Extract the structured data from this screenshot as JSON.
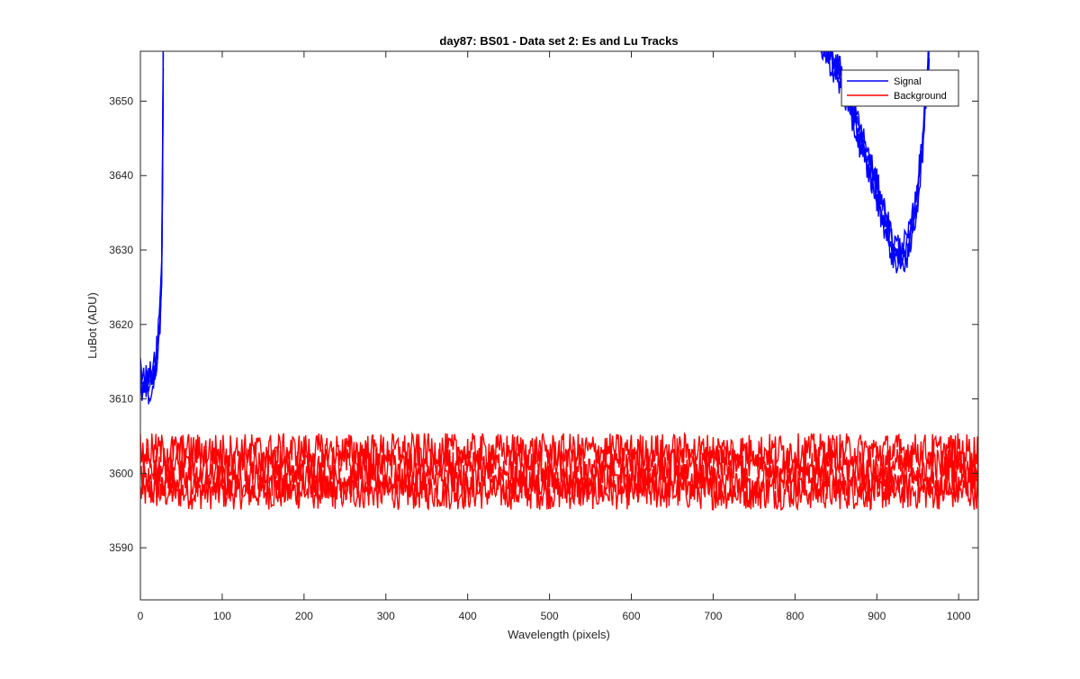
{
  "chart_data": {
    "type": "line",
    "title": "day87: BS01 - Data set 2: Es and Lu Tracks",
    "xlabel": "Wavelength (pixels)",
    "ylabel": "LuBot (ADU)",
    "xlim": [
      0,
      1024
    ],
    "ylim": [
      3583,
      3656.7
    ],
    "xticks": [
      0,
      100,
      200,
      300,
      400,
      500,
      600,
      700,
      800,
      900,
      1000
    ],
    "yticks": [
      3590,
      3600,
      3610,
      3620,
      3630,
      3640,
      3650
    ],
    "grid": false,
    "legend_position": "top-right",
    "series": [
      {
        "name": "Signal",
        "color": "#0000ff",
        "tracks": 4,
        "noise_amplitude": 1.6,
        "points": [
          [
            0,
            3613
          ],
          [
            5,
            3612
          ],
          [
            10,
            3612
          ],
          [
            15,
            3613
          ],
          [
            18,
            3614
          ],
          [
            20,
            3616
          ],
          [
            22,
            3618
          ],
          [
            24,
            3621
          ],
          [
            26,
            3628
          ],
          [
            27,
            3640
          ],
          [
            28,
            3656.7
          ],
          [
            820,
            3661
          ],
          [
            840,
            3657
          ],
          [
            860,
            3652
          ],
          [
            880,
            3645
          ],
          [
            900,
            3638
          ],
          [
            910,
            3634
          ],
          [
            920,
            3630
          ],
          [
            930,
            3629
          ],
          [
            940,
            3631
          ],
          [
            948,
            3636
          ],
          [
            955,
            3643
          ],
          [
            960,
            3651
          ],
          [
            964,
            3656.7
          ]
        ]
      },
      {
        "name": "Background",
        "color": "#ff0000",
        "track_levels": [
          3597.5,
          3599,
          3601,
          3603
        ],
        "noise_amplitude": 2.4,
        "x_range": [
          0,
          1024
        ]
      }
    ]
  }
}
